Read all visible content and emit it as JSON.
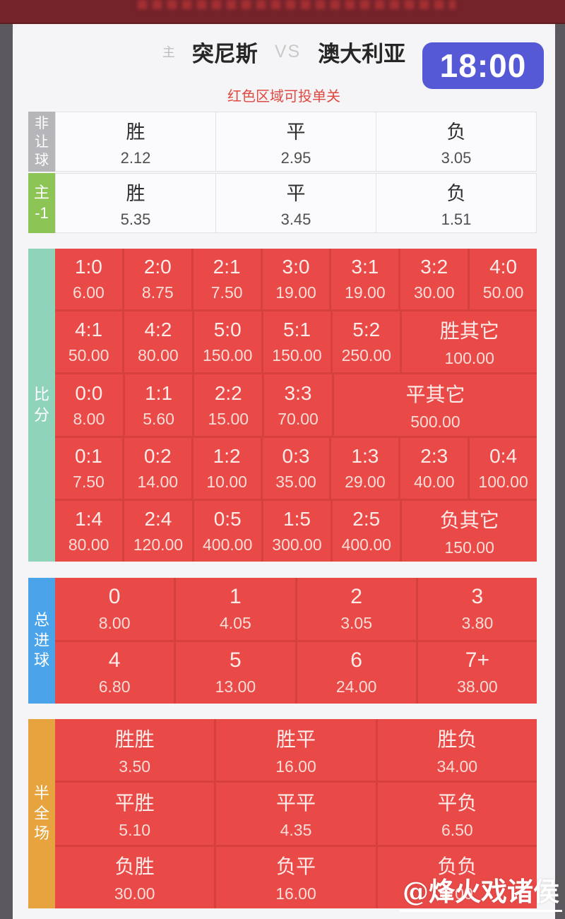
{
  "header": {
    "home_marker": "主",
    "home_team": "突尼斯",
    "vs": "VS",
    "away_team": "澳大利亚",
    "kickoff_time": "18:00",
    "notice": "红色区域可投单关"
  },
  "colors": {
    "top_bar": "#74232b",
    "time_badge": "#5659d6",
    "notice_red": "#e04a42",
    "single_bet_cell": "#e94a47",
    "score_label": "#90d3bb",
    "goals_label": "#4ba4ea",
    "htft_label": "#e7a33d",
    "no_handicap_label": "#b6b5b9",
    "handicap_label": "#8cc556"
  },
  "handicap_tables": [
    {
      "label": "非\n让\n球",
      "rows": [
        [
          {
            "label": "胜",
            "odds": "2.12"
          },
          {
            "label": "平",
            "odds": "2.95"
          },
          {
            "label": "负",
            "odds": "3.05"
          }
        ]
      ]
    },
    {
      "label": "主\n-1",
      "rows": [
        [
          {
            "label": "胜",
            "odds": "5.35"
          },
          {
            "label": "平",
            "odds": "3.45"
          },
          {
            "label": "负",
            "odds": "1.51"
          }
        ]
      ]
    }
  ],
  "score_section": {
    "label": "比\n分",
    "rows": [
      [
        {
          "label": "1:0",
          "odds": "6.00"
        },
        {
          "label": "2:0",
          "odds": "8.75"
        },
        {
          "label": "2:1",
          "odds": "7.50"
        },
        {
          "label": "3:0",
          "odds": "19.00"
        },
        {
          "label": "3:1",
          "odds": "19.00"
        },
        {
          "label": "3:2",
          "odds": "30.00"
        },
        {
          "label": "4:0",
          "odds": "50.00"
        }
      ],
      [
        {
          "label": "4:1",
          "odds": "50.00"
        },
        {
          "label": "4:2",
          "odds": "80.00"
        },
        {
          "label": "5:0",
          "odds": "150.00"
        },
        {
          "label": "5:1",
          "odds": "150.00"
        },
        {
          "label": "5:2",
          "odds": "250.00"
        },
        {
          "label": "胜其它",
          "odds": "100.00",
          "span": 2
        }
      ],
      [
        {
          "label": "0:0",
          "odds": "8.00"
        },
        {
          "label": "1:1",
          "odds": "5.60"
        },
        {
          "label": "2:2",
          "odds": "15.00"
        },
        {
          "label": "3:3",
          "odds": "70.00"
        },
        {
          "label": "平其它",
          "odds": "500.00",
          "span": 3
        }
      ],
      [
        {
          "label": "0:1",
          "odds": "7.50"
        },
        {
          "label": "0:2",
          "odds": "14.00"
        },
        {
          "label": "1:2",
          "odds": "10.00"
        },
        {
          "label": "0:3",
          "odds": "35.00"
        },
        {
          "label": "1:3",
          "odds": "29.00"
        },
        {
          "label": "2:3",
          "odds": "40.00"
        },
        {
          "label": "0:4",
          "odds": "100.00"
        }
      ],
      [
        {
          "label": "1:4",
          "odds": "80.00"
        },
        {
          "label": "2:4",
          "odds": "120.00"
        },
        {
          "label": "0:5",
          "odds": "400.00"
        },
        {
          "label": "1:5",
          "odds": "300.00"
        },
        {
          "label": "2:5",
          "odds": "400.00"
        },
        {
          "label": "负其它",
          "odds": "150.00",
          "span": 2
        }
      ]
    ]
  },
  "goals_section": {
    "label": "总\n进\n球",
    "rows": [
      [
        {
          "label": "0",
          "odds": "8.00"
        },
        {
          "label": "1",
          "odds": "4.05"
        },
        {
          "label": "2",
          "odds": "3.05"
        },
        {
          "label": "3",
          "odds": "3.80"
        }
      ],
      [
        {
          "label": "4",
          "odds": "6.80"
        },
        {
          "label": "5",
          "odds": "13.00"
        },
        {
          "label": "6",
          "odds": "24.00"
        },
        {
          "label": "7+",
          "odds": "38.00"
        }
      ]
    ]
  },
  "htft_section": {
    "label": "半\n全\n场",
    "rows": [
      [
        {
          "label": "胜胜",
          "odds": "3.50"
        },
        {
          "label": "胜平",
          "odds": "16.00"
        },
        {
          "label": "胜负",
          "odds": "34.00"
        }
      ],
      [
        {
          "label": "平胜",
          "odds": "5.10"
        },
        {
          "label": "平平",
          "odds": "4.35"
        },
        {
          "label": "平负",
          "odds": "6.50"
        }
      ],
      [
        {
          "label": "负胜",
          "odds": "30.00"
        },
        {
          "label": "负平",
          "odds": "16.00"
        },
        {
          "label": "负负",
          "odds": "5.00"
        }
      ]
    ]
  },
  "watermark": "@烽火戏诸侯"
}
